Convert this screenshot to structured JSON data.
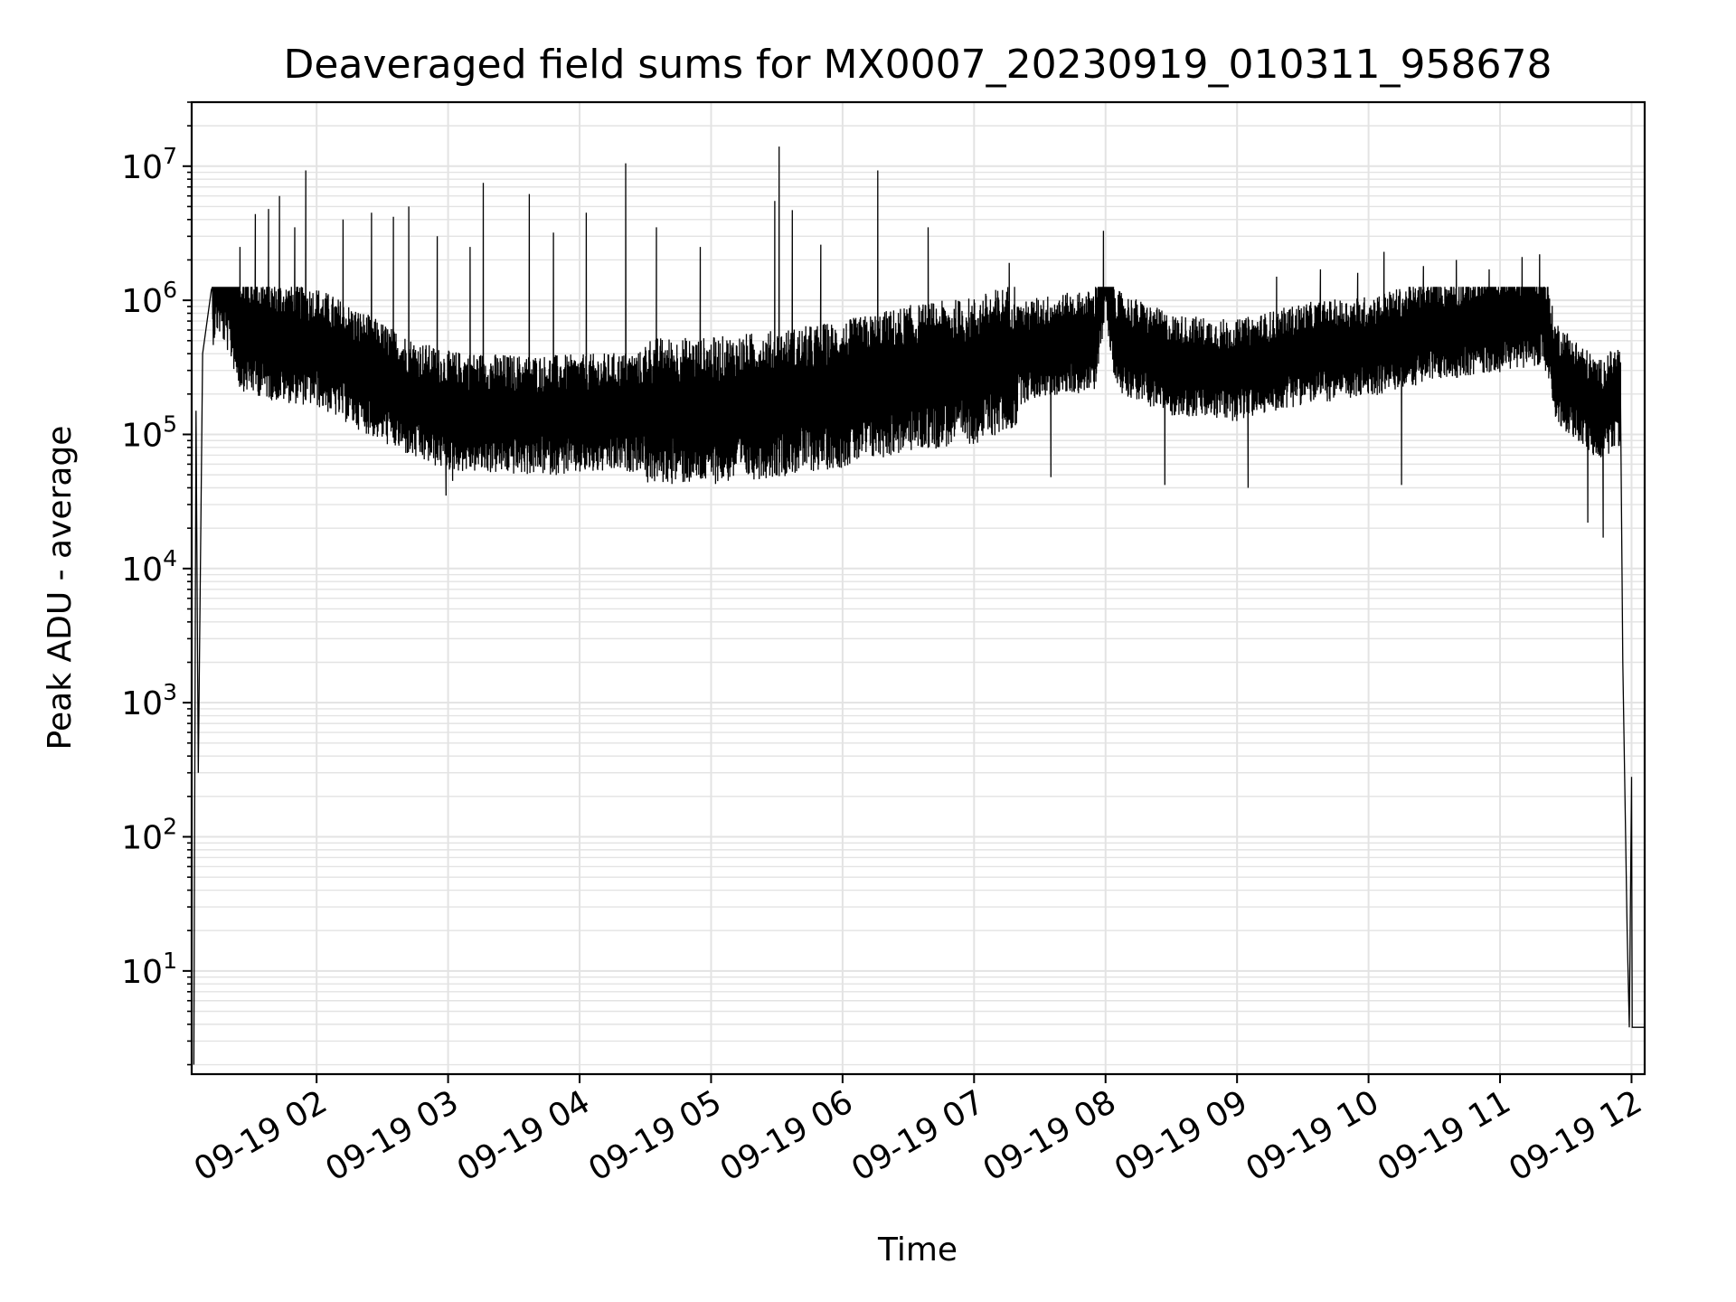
{
  "chart_data": {
    "type": "line",
    "title": "Deaveraged field sums for MX0007_20230919_010311_958678",
    "xlabel": "Time",
    "ylabel": "Peak ADU - average",
    "yscale": "log",
    "ylim": [
      1.7,
      30000000
    ],
    "xlim": [
      "2023-09-19 01:03",
      "2023-09-19 12:06"
    ],
    "grid": true,
    "line_color": "#000000",
    "x_ticks": [
      {
        "at": "2023-09-19 02:00",
        "label": "09-19 02"
      },
      {
        "at": "2023-09-19 03:00",
        "label": "09-19 03"
      },
      {
        "at": "2023-09-19 04:00",
        "label": "09-19 04"
      },
      {
        "at": "2023-09-19 05:00",
        "label": "09-19 05"
      },
      {
        "at": "2023-09-19 06:00",
        "label": "09-19 06"
      },
      {
        "at": "2023-09-19 07:00",
        "label": "09-19 07"
      },
      {
        "at": "2023-09-19 08:00",
        "label": "09-19 08"
      },
      {
        "at": "2023-09-19 09:00",
        "label": "09-19 09"
      },
      {
        "at": "2023-09-19 10:00",
        "label": "09-19 10"
      },
      {
        "at": "2023-09-19 11:00",
        "label": "09-19 11"
      },
      {
        "at": "2023-09-19 12:00",
        "label": "09-19 12"
      }
    ],
    "y_ticks": [
      {
        "value": 10,
        "base": "10",
        "exp": "1"
      },
      {
        "value": 100,
        "base": "10",
        "exp": "2"
      },
      {
        "value": 1000,
        "base": "10",
        "exp": "3"
      },
      {
        "value": 10000,
        "base": "10",
        "exp": "4"
      },
      {
        "value": 100000,
        "base": "10",
        "exp": "5"
      },
      {
        "value": 1000000,
        "base": "10",
        "exp": "6"
      },
      {
        "value": 10000000,
        "base": "10",
        "exp": "7"
      }
    ],
    "series": [
      {
        "baseline": [
          [
            "2023-09-19 01:04",
            2
          ],
          [
            "2023-09-19 01:05",
            150000
          ],
          [
            "2023-09-19 01:06",
            300
          ],
          [
            "2023-09-19 01:08",
            400000
          ],
          [
            "2023-09-19 01:12",
            1200000
          ],
          [
            "2023-09-19 01:15",
            1600000
          ],
          [
            "2023-09-19 01:20",
            1100000
          ],
          [
            "2023-09-19 01:25",
            600000
          ],
          [
            "2023-09-19 01:40",
            500000
          ],
          [
            "2023-09-19 02:00",
            450000
          ],
          [
            "2023-09-19 02:20",
            300000
          ],
          [
            "2023-09-19 02:45",
            180000
          ],
          [
            "2023-09-19 03:00",
            150000
          ],
          [
            "2023-09-19 03:30",
            140000
          ],
          [
            "2023-09-19 04:00",
            140000
          ],
          [
            "2023-09-19 04:30",
            150000
          ],
          [
            "2023-09-19 05:00",
            150000
          ],
          [
            "2023-09-19 05:30",
            170000
          ],
          [
            "2023-09-19 06:00",
            200000
          ],
          [
            "2023-09-19 06:30",
            260000
          ],
          [
            "2023-09-19 07:00",
            300000
          ],
          [
            "2023-09-19 07:30",
            450000
          ],
          [
            "2023-09-19 07:55",
            500000
          ],
          [
            "2023-09-19 08:00",
            1800000
          ],
          [
            "2023-09-19 08:05",
            500000
          ],
          [
            "2023-09-19 08:30",
            330000
          ],
          [
            "2023-09-19 09:00",
            300000
          ],
          [
            "2023-09-19 09:30",
            400000
          ],
          [
            "2023-09-19 10:00",
            450000
          ],
          [
            "2023-09-19 10:30",
            600000
          ],
          [
            "2023-09-19 11:00",
            700000
          ],
          [
            "2023-09-19 11:20",
            800000
          ],
          [
            "2023-09-19 11:25",
            300000
          ],
          [
            "2023-09-19 11:45",
            150000
          ],
          [
            "2023-09-19 11:55",
            200000
          ]
        ],
        "spikes": [
          [
            "2023-09-19 01:25",
            2500000
          ],
          [
            "2023-09-19 01:32",
            4400000
          ],
          [
            "2023-09-19 01:38",
            4800000
          ],
          [
            "2023-09-19 01:43",
            6000000
          ],
          [
            "2023-09-19 01:50",
            3500000
          ],
          [
            "2023-09-19 01:55",
            9300000
          ],
          [
            "2023-09-19 02:12",
            4000000
          ],
          [
            "2023-09-19 02:25",
            4500000
          ],
          [
            "2023-09-19 02:35",
            4200000
          ],
          [
            "2023-09-19 02:42",
            5000000
          ],
          [
            "2023-09-19 02:55",
            3000000
          ],
          [
            "2023-09-19 03:10",
            2500000
          ],
          [
            "2023-09-19 03:16",
            7500000
          ],
          [
            "2023-09-19 03:37",
            6200000
          ],
          [
            "2023-09-19 03:48",
            3200000
          ],
          [
            "2023-09-19 04:03",
            4500000
          ],
          [
            "2023-09-19 04:21",
            10500000
          ],
          [
            "2023-09-19 04:35",
            3500000
          ],
          [
            "2023-09-19 04:55",
            2500000
          ],
          [
            "2023-09-19 05:29",
            5500000
          ],
          [
            "2023-09-19 05:31",
            14000000
          ],
          [
            "2023-09-19 05:37",
            4700000
          ],
          [
            "2023-09-19 05:50",
            2600000
          ],
          [
            "2023-09-19 06:16",
            9300000
          ],
          [
            "2023-09-19 06:39",
            3500000
          ],
          [
            "2023-09-19 07:16",
            1900000
          ],
          [
            "2023-09-19 07:59",
            3300000
          ],
          [
            "2023-09-19 09:18",
            1500000
          ],
          [
            "2023-09-19 09:38",
            1700000
          ],
          [
            "2023-09-19 09:55",
            1600000
          ],
          [
            "2023-09-19 10:07",
            2300000
          ],
          [
            "2023-09-19 10:25",
            1800000
          ],
          [
            "2023-09-19 10:40",
            2000000
          ],
          [
            "2023-09-19 10:55",
            1700000
          ],
          [
            "2023-09-19 11:10",
            2100000
          ],
          [
            "2023-09-19 11:18",
            2200000
          ]
        ],
        "dips": [
          [
            "2023-09-19 02:59",
            35000
          ],
          [
            "2023-09-19 03:02",
            45000
          ],
          [
            "2023-09-19 07:35",
            48000
          ],
          [
            "2023-09-19 08:27",
            42000
          ],
          [
            "2023-09-19 09:05",
            40000
          ],
          [
            "2023-09-19 10:15",
            42000
          ],
          [
            "2023-09-19 11:40",
            22000
          ],
          [
            "2023-09-19 11:47",
            17000
          ]
        ],
        "tail": [
          [
            "2023-09-19 11:55",
            180000
          ],
          [
            "2023-09-19 11:56",
            2000
          ],
          [
            "2023-09-19 11:57",
            200
          ],
          [
            "2023-09-19 11:58",
            20
          ],
          [
            "2023-09-19 11:59",
            3.8
          ],
          [
            "2023-09-19 12:00",
            280
          ],
          [
            "2023-09-19 12:00",
            3.8
          ],
          [
            "2023-09-19 12:06",
            3.8
          ]
        ]
      }
    ]
  }
}
